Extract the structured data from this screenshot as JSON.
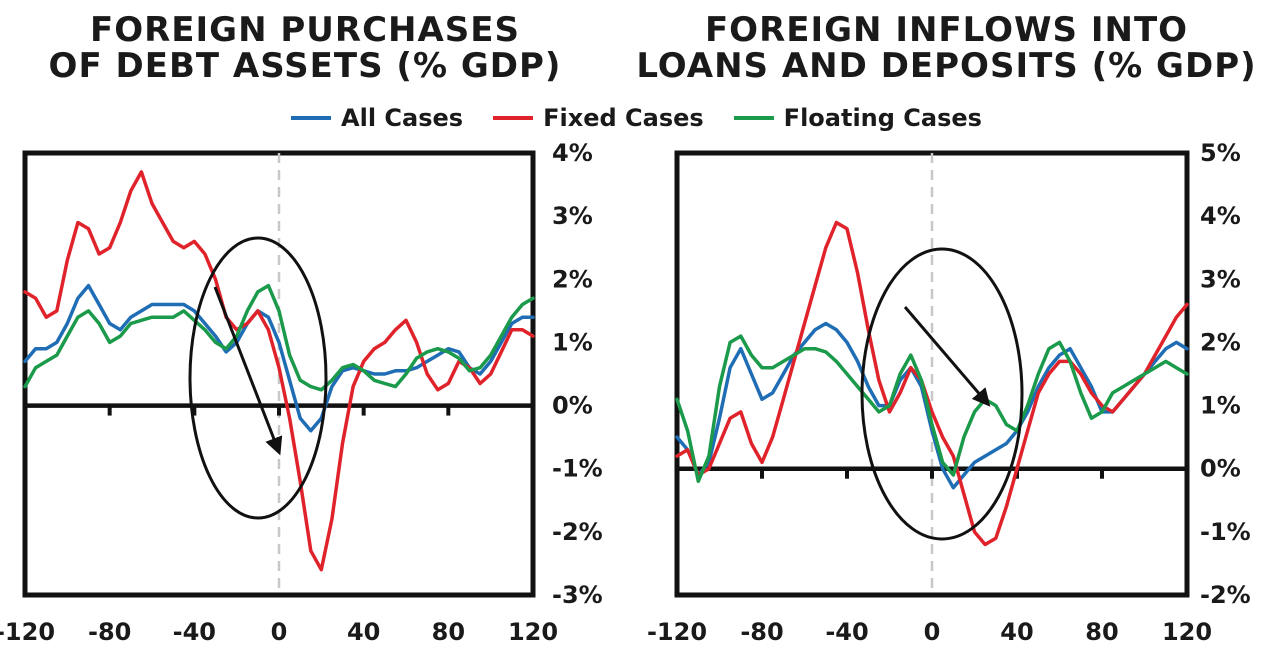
{
  "legend": [
    {
      "name": "All Cases",
      "color": "#1f6db5"
    },
    {
      "name": "Fixed Cases",
      "color": "#e0232b"
    },
    {
      "name": "Floating Cases",
      "color": "#1a9a4a"
    }
  ],
  "chart_data": [
    {
      "type": "line",
      "title": "FOREIGN PURCHASES OF DEBT ASSETS (% GDP)",
      "xlim": [
        -120,
        120
      ],
      "ylim": [
        -3,
        4
      ],
      "x_ticks": [
        "-120",
        "-80",
        "-40",
        "0",
        "40",
        "80",
        "120"
      ],
      "y_ticks": [
        "4%",
        "3%",
        "2%",
        "1%",
        "0%",
        "-1%",
        "-2%",
        "-3%"
      ],
      "y_axis_side": "right",
      "annotations": [
        "ellipse around x = -40 to 20",
        "arrow pointing down-right"
      ],
      "series": [
        {
          "name": "All Cases",
          "x": [
            -120,
            -115,
            -110,
            -105,
            -100,
            -95,
            -90,
            -85,
            -80,
            -75,
            -70,
            -65,
            -60,
            -55,
            -50,
            -45,
            -40,
            -35,
            -30,
            -25,
            -20,
            -15,
            -10,
            -5,
            0,
            5,
            10,
            15,
            20,
            25,
            30,
            35,
            40,
            45,
            50,
            55,
            60,
            65,
            70,
            75,
            80,
            85,
            90,
            95,
            100,
            105,
            110,
            115,
            120
          ],
          "y": [
            0.7,
            0.9,
            0.9,
            1.0,
            1.3,
            1.7,
            1.9,
            1.6,
            1.3,
            1.2,
            1.4,
            1.5,
            1.6,
            1.6,
            1.6,
            1.6,
            1.5,
            1.3,
            1.1,
            0.85,
            1.0,
            1.3,
            1.5,
            1.4,
            1.0,
            0.4,
            -0.2,
            -0.4,
            -0.2,
            0.3,
            0.55,
            0.6,
            0.55,
            0.5,
            0.5,
            0.55,
            0.55,
            0.6,
            0.7,
            0.8,
            0.9,
            0.85,
            0.6,
            0.5,
            0.7,
            1.0,
            1.3,
            1.4,
            1.4
          ]
        },
        {
          "name": "Fixed Cases",
          "x": [
            -120,
            -115,
            -110,
            -105,
            -100,
            -95,
            -90,
            -85,
            -80,
            -75,
            -70,
            -65,
            -60,
            -55,
            -50,
            -45,
            -40,
            -35,
            -30,
            -25,
            -20,
            -15,
            -10,
            -5,
            0,
            5,
            10,
            15,
            20,
            25,
            30,
            35,
            40,
            45,
            50,
            55,
            60,
            65,
            70,
            75,
            80,
            85,
            90,
            95,
            100,
            105,
            110,
            115,
            120
          ],
          "y": [
            1.8,
            1.7,
            1.4,
            1.5,
            2.3,
            2.9,
            2.8,
            2.4,
            2.5,
            2.9,
            3.4,
            3.7,
            3.2,
            2.9,
            2.6,
            2.5,
            2.6,
            2.4,
            2.0,
            1.4,
            1.2,
            1.3,
            1.5,
            1.2,
            0.6,
            -0.2,
            -1.2,
            -2.3,
            -2.6,
            -1.8,
            -0.6,
            0.3,
            0.7,
            0.9,
            1.0,
            1.2,
            1.35,
            1.0,
            0.5,
            0.25,
            0.35,
            0.7,
            0.6,
            0.35,
            0.5,
            0.85,
            1.2,
            1.2,
            1.1
          ]
        },
        {
          "name": "Floating Cases",
          "x": [
            -120,
            -115,
            -110,
            -105,
            -100,
            -95,
            -90,
            -85,
            -80,
            -75,
            -70,
            -65,
            -60,
            -55,
            -50,
            -45,
            -40,
            -35,
            -30,
            -25,
            -20,
            -15,
            -10,
            -5,
            0,
            5,
            10,
            15,
            20,
            25,
            30,
            35,
            40,
            45,
            50,
            55,
            60,
            65,
            70,
            75,
            80,
            85,
            90,
            95,
            100,
            105,
            110,
            115,
            120
          ],
          "y": [
            0.3,
            0.6,
            0.7,
            0.8,
            1.1,
            1.4,
            1.5,
            1.3,
            1.0,
            1.1,
            1.3,
            1.35,
            1.4,
            1.4,
            1.4,
            1.5,
            1.35,
            1.2,
            1.0,
            0.9,
            1.1,
            1.5,
            1.8,
            1.9,
            1.5,
            0.8,
            0.4,
            0.3,
            0.25,
            0.4,
            0.6,
            0.65,
            0.55,
            0.4,
            0.35,
            0.3,
            0.5,
            0.75,
            0.85,
            0.9,
            0.85,
            0.75,
            0.55,
            0.6,
            0.8,
            1.1,
            1.4,
            1.6,
            1.7
          ]
        }
      ]
    },
    {
      "type": "line",
      "title": "FOREIGN INFLOWS INTO LOANS AND DEPOSITS (% GDP)",
      "xlim": [
        -120,
        120
      ],
      "ylim": [
        -2,
        5
      ],
      "x_ticks": [
        "-120",
        "-80",
        "-40",
        "0",
        "40",
        "80",
        "120"
      ],
      "y_ticks": [
        "5%",
        "4%",
        "3%",
        "2%",
        "1%",
        "0%",
        "-1%",
        "-2%"
      ],
      "y_axis_side": "right",
      "annotations": [
        "ellipse around x = -30 to 40",
        "arrow pointing down-right"
      ],
      "series": [
        {
          "name": "All Cases",
          "x": [
            -120,
            -115,
            -110,
            -105,
            -100,
            -95,
            -90,
            -85,
            -80,
            -75,
            -70,
            -65,
            -60,
            -55,
            -50,
            -45,
            -40,
            -35,
            -30,
            -25,
            -20,
            -15,
            -10,
            -5,
            0,
            5,
            10,
            15,
            20,
            25,
            30,
            35,
            40,
            45,
            50,
            55,
            60,
            65,
            70,
            75,
            80,
            85,
            90,
            95,
            100,
            105,
            110,
            115,
            120
          ],
          "y": [
            0.5,
            0.3,
            -0.1,
            0.1,
            0.8,
            1.6,
            1.9,
            1.5,
            1.1,
            1.2,
            1.5,
            1.8,
            2.0,
            2.2,
            2.3,
            2.2,
            2.0,
            1.7,
            1.3,
            1.0,
            1.0,
            1.4,
            1.6,
            1.3,
            0.6,
            0.0,
            -0.3,
            -0.1,
            0.1,
            0.2,
            0.3,
            0.4,
            0.6,
            0.9,
            1.3,
            1.6,
            1.8,
            1.9,
            1.6,
            1.3,
            0.9,
            0.9,
            1.1,
            1.3,
            1.5,
            1.7,
            1.9,
            2.0,
            1.9
          ]
        },
        {
          "name": "Fixed Cases",
          "x": [
            -120,
            -115,
            -110,
            -105,
            -100,
            -95,
            -90,
            -85,
            -80,
            -75,
            -70,
            -65,
            -60,
            -55,
            -50,
            -45,
            -40,
            -35,
            -30,
            -25,
            -20,
            -15,
            -10,
            -5,
            0,
            5,
            10,
            15,
            20,
            25,
            30,
            35,
            40,
            45,
            50,
            55,
            60,
            65,
            70,
            75,
            80,
            85,
            90,
            95,
            100,
            105,
            110,
            115,
            120
          ],
          "y": [
            0.2,
            0.3,
            -0.1,
            0.0,
            0.4,
            0.8,
            0.9,
            0.4,
            0.1,
            0.5,
            1.1,
            1.7,
            2.3,
            2.9,
            3.5,
            3.9,
            3.8,
            3.1,
            2.2,
            1.4,
            0.9,
            1.2,
            1.6,
            1.4,
            0.9,
            0.5,
            0.2,
            -0.4,
            -1.0,
            -1.2,
            -1.1,
            -0.6,
            0.0,
            0.6,
            1.2,
            1.5,
            1.7,
            1.7,
            1.5,
            1.2,
            1.0,
            0.9,
            1.1,
            1.3,
            1.5,
            1.8,
            2.1,
            2.4,
            2.6
          ]
        },
        {
          "name": "Floating Cases",
          "x": [
            -120,
            -115,
            -110,
            -105,
            -100,
            -95,
            -90,
            -85,
            -80,
            -75,
            -70,
            -65,
            -60,
            -55,
            -50,
            -45,
            -40,
            -35,
            -30,
            -25,
            -20,
            -15,
            -10,
            -5,
            0,
            5,
            10,
            15,
            20,
            25,
            30,
            35,
            40,
            45,
            50,
            55,
            60,
            65,
            70,
            75,
            80,
            85,
            90,
            95,
            100,
            105,
            110,
            115,
            120
          ],
          "y": [
            1.1,
            0.6,
            -0.2,
            0.2,
            1.3,
            2.0,
            2.1,
            1.8,
            1.6,
            1.6,
            1.7,
            1.8,
            1.9,
            1.9,
            1.85,
            1.7,
            1.5,
            1.3,
            1.1,
            0.9,
            1.0,
            1.5,
            1.8,
            1.4,
            0.7,
            0.1,
            -0.1,
            0.5,
            0.9,
            1.1,
            1.0,
            0.7,
            0.6,
            1.0,
            1.5,
            1.9,
            2.0,
            1.7,
            1.2,
            0.8,
            0.9,
            1.2,
            1.3,
            1.4,
            1.5,
            1.6,
            1.7,
            1.6,
            1.5
          ]
        }
      ]
    }
  ]
}
